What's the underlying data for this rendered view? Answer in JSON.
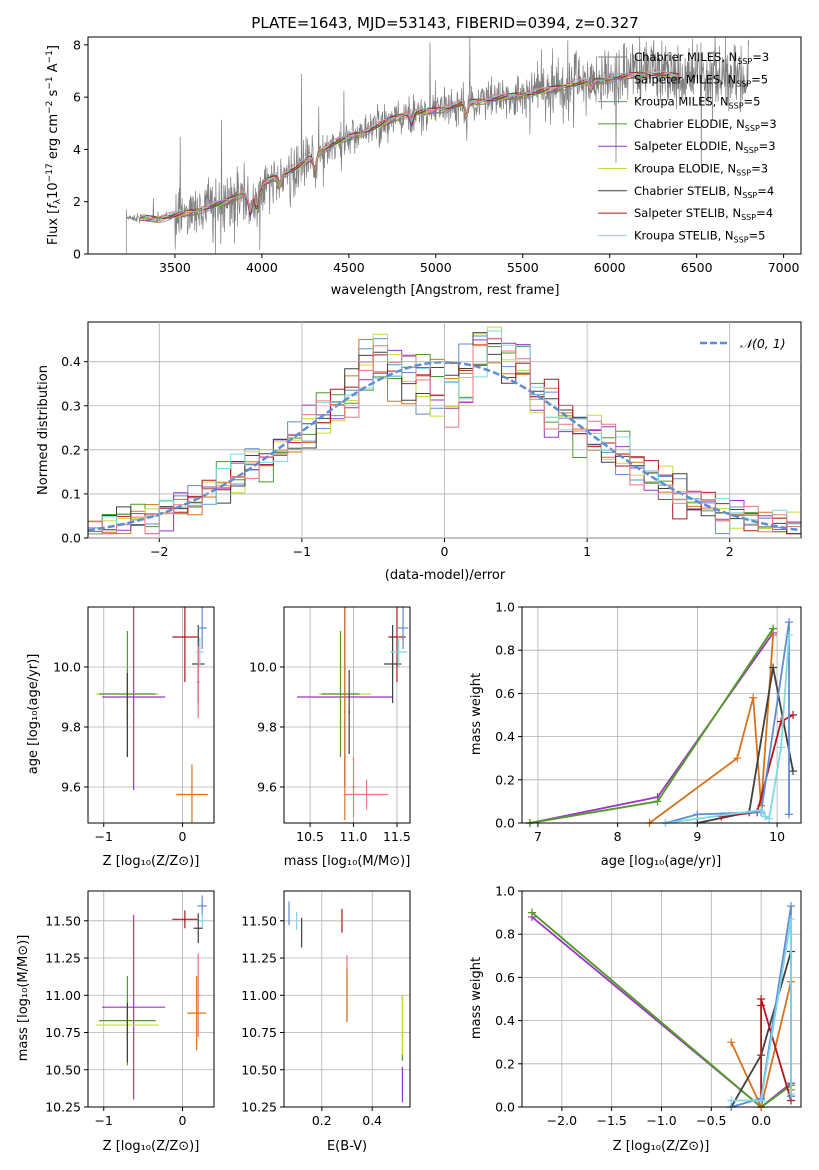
{
  "palette": [
    "#7f7f7f",
    "#5f8dd3",
    "#d8721e",
    "#4e9a2a",
    "#9a35c8",
    "#c8db3a",
    "#404040",
    "#b0171f",
    "#7fd8e6",
    "#e8787e",
    "#dba400"
  ],
  "panels": {
    "spectrum": {
      "title": "PLATE=1643, MJD=53143, FIBERID=0394, z=0.327",
      "xlabel": "wavelength [Angstrom, rest frame]",
      "ylabel_parts": [
        "Flux [",
        "f",
        "λ",
        "10",
        "−17",
        " erg cm",
        "−2",
        " s",
        "−1",
        " A",
        "−1",
        "]"
      ],
      "xticks": [
        "3500",
        "4000",
        "4500",
        "5000",
        "5500",
        "6000",
        "6500",
        "7000"
      ],
      "yticks": [
        "0",
        "2",
        "4",
        "6",
        "8"
      ],
      "legend": [
        {
          "base": "Chabrier MILES, N",
          "sub": "SSP",
          "tail": "=3",
          "color": "#7f7f7f"
        },
        {
          "base": "Salpeter MILES, N",
          "sub": "SSP",
          "tail": "=5",
          "color": "#5f8dd3"
        },
        {
          "base": "Kroupa MILES, N",
          "sub": "SSP",
          "tail": "=5",
          "color": "#d8721e"
        },
        {
          "base": "Chabrier ELODIE, N",
          "sub": "SSP",
          "tail": "=3",
          "color": "#4e9a2a"
        },
        {
          "base": "Salpeter ELODIE, N",
          "sub": "SSP",
          "tail": "=3",
          "color": "#9a35c8"
        },
        {
          "base": "Kroupa ELODIE, N",
          "sub": "SSP",
          "tail": "=3",
          "color": "#c8db3a"
        },
        {
          "base": "Chabrier STELIB, N",
          "sub": "SSP",
          "tail": "=4",
          "color": "#404040"
        },
        {
          "base": "Salpeter STELIB, N",
          "sub": "SSP",
          "tail": "=4",
          "color": "#b0171f"
        },
        {
          "base": "Kroupa STELIB, N",
          "sub": "SSP",
          "tail": "=5",
          "color": "#7fd8e6"
        }
      ]
    },
    "residuals": {
      "xlabel": "(data-model)/error",
      "ylabel": "Normed distribution",
      "legend": "𝒩(0, 1)",
      "xticks": [
        "−2",
        "−1",
        "0",
        "1",
        "2"
      ],
      "yticks": [
        "0.0",
        "0.1",
        "0.2",
        "0.3",
        "0.4"
      ]
    },
    "age_Z": {
      "xlabel": "Z [log₁₀(Z/Z⊙)]",
      "ylabel": "age  [log₁₀(age/yr)]",
      "xticks": [
        "−1",
        "0"
      ],
      "yticks": [
        "9.6",
        "9.8",
        "10.0"
      ]
    },
    "age_mass": {
      "xlabel": "mass [log₁₀(M/M⊙)]",
      "xticks": [
        "10.5",
        "11.0",
        "11.5"
      ],
      "yticks": [
        "9.6",
        "9.8",
        "10.0"
      ]
    },
    "weight_age": {
      "xlabel": "age  [log₁₀(age/yr)]",
      "ylabel": "mass weight",
      "xticks": [
        "7",
        "8",
        "9",
        "10"
      ],
      "yticks": [
        "0.0",
        "0.2",
        "0.4",
        "0.6",
        "0.8",
        "1.0"
      ]
    },
    "mass_Z": {
      "xlabel": "Z [log₁₀(Z/Z⊙)]",
      "ylabel": "mass [log₁₀(M/M⊙)]",
      "xticks": [
        "−1",
        "0"
      ],
      "yticks": [
        "10.25",
        "10.50",
        "10.75",
        "11.00",
        "11.25",
        "11.50"
      ]
    },
    "mass_ebv": {
      "xlabel": "E(B-V)",
      "xticks": [
        "0.2",
        "0.4"
      ],
      "yticks": [
        "10.25",
        "10.50",
        "10.75",
        "11.00",
        "11.25",
        "11.50"
      ]
    },
    "weight_Z": {
      "xlabel": "Z [log₁₀(Z/Z⊙)]",
      "ylabel": "mass weight",
      "xticks": [
        "−2.0",
        "−1.5",
        "−1.0",
        "−0.5",
        "0.0"
      ],
      "yticks": [
        "0.0",
        "0.2",
        "0.4",
        "0.6",
        "0.8",
        "1.0"
      ]
    }
  },
  "chart_data": [
    {
      "type": "line",
      "title": "PLATE=1643, MJD=53143, FIBERID=0394, z=0.327",
      "xlabel": "wavelength [Angstrom, rest frame]",
      "ylabel": "Flux [fλ 10−17 erg cm−2 s−1 A−1]",
      "xlim": [
        3000,
        7100
      ],
      "ylim": [
        0,
        8.3
      ],
      "data_trend": {
        "x": [
          3220,
          3400,
          3600,
          3800,
          4000,
          4200,
          4400,
          4600,
          4800,
          5000,
          5200,
          5400,
          5600,
          5800,
          6000,
          6200,
          6400,
          6600,
          6800
        ],
        "y": [
          1.4,
          1.35,
          1.6,
          2.0,
          2.7,
          3.3,
          4.2,
          4.7,
          5.3,
          5.5,
          5.8,
          6.0,
          6.2,
          6.5,
          6.7,
          6.9,
          6.8,
          6.9,
          6.8
        ]
      },
      "series": [
        {
          "name": "Chabrier MILES, NSSP=3"
        },
        {
          "name": "Salpeter MILES, NSSP=5"
        },
        {
          "name": "Kroupa MILES, NSSP=5"
        },
        {
          "name": "Chabrier ELODIE, NSSP=3"
        },
        {
          "name": "Salpeter ELODIE, NSSP=3"
        },
        {
          "name": "Kroupa ELODIE, NSSP=3"
        },
        {
          "name": "Chabrier STELIB, NSSP=4"
        },
        {
          "name": "Salpeter STELIB, NSSP=4"
        },
        {
          "name": "Kroupa STELIB, NSSP=5"
        }
      ]
    },
    {
      "type": "histogram",
      "xlabel": "(data-model)/error",
      "ylabel": "Normed distribution",
      "xlim": [
        -2.5,
        2.5
      ],
      "ylim": [
        0,
        0.49
      ],
      "bin_width": 0.1,
      "reference": {
        "name": "𝒩(0, 1)",
        "mean": 0,
        "sigma": 1
      }
    },
    {
      "type": "scatter",
      "xlabel": "Z [log10(Z/Z⊙)]",
      "ylabel": "age [log10(age/yr)]",
      "xlim": [
        -1.2,
        0.4
      ],
      "ylim": [
        9.48,
        10.2
      ],
      "points": [
        {
          "x": -0.62,
          "y": 9.9,
          "xerr": 0.4,
          "yerr": 0.31,
          "color": "#9a35c8"
        },
        {
          "x": -0.7,
          "y": 9.91,
          "xerr": 0.4,
          "yerr": 0.08,
          "color": "#c8db3a"
        },
        {
          "x": -0.7,
          "y": 9.91,
          "xerr": 0.36,
          "yerr": 0.21,
          "color": "#4e9a2a"
        },
        {
          "x": -0.7,
          "y": 9.84,
          "xerr": 0.01,
          "yerr": 0.14,
          "color": "#404040"
        },
        {
          "x": 0.03,
          "y": 10.1,
          "xerr": 0.16,
          "yerr": 0.15,
          "color": "#b0171f"
        },
        {
          "x": 0.2,
          "y": 10.01,
          "xerr": 0.08,
          "yerr": 0.13,
          "color": "#404040"
        },
        {
          "x": 0.25,
          "y": 10.13,
          "xerr": 0.06,
          "yerr": 0.07,
          "color": "#5f8dd3"
        },
        {
          "x": 0.22,
          "y": 10.05,
          "xerr": 0.05,
          "yerr": 0.05,
          "color": "#7fd8e6"
        },
        {
          "x": 0.2,
          "y": 9.95,
          "xerr": 0.02,
          "yerr": 0.12,
          "color": "#e8787e"
        },
        {
          "x": 0.12,
          "y": 9.575,
          "xerr": 0.2,
          "yerr": 0.1,
          "color": "#d8721e"
        }
      ]
    },
    {
      "type": "scatter",
      "xlabel": "mass [log10(M/M⊙)]",
      "ylabel": "",
      "xlim": [
        10.2,
        11.65
      ],
      "ylim": [
        9.48,
        10.2
      ],
      "points": [
        {
          "x": 10.9,
          "y": 9.9,
          "xerr": 0.55,
          "yerr": 0.3,
          "color": "#9a35c8"
        },
        {
          "x": 10.9,
          "y": 9.91,
          "xerr": 0.3,
          "yerr": 0.08,
          "color": "#c8db3a"
        },
        {
          "x": 10.85,
          "y": 9.91,
          "xerr": 0.22,
          "yerr": 0.21,
          "color": "#4e9a2a"
        },
        {
          "x": 10.95,
          "y": 9.85,
          "xerr": 0.01,
          "yerr": 0.14,
          "color": "#404040"
        },
        {
          "x": 11.5,
          "y": 10.1,
          "xerr": 0.1,
          "yerr": 0.15,
          "color": "#b0171f"
        },
        {
          "x": 11.45,
          "y": 10.01,
          "xerr": 0.1,
          "yerr": 0.13,
          "color": "#404040"
        },
        {
          "x": 11.57,
          "y": 10.13,
          "xerr": 0.06,
          "yerr": 0.07,
          "color": "#5f8dd3"
        },
        {
          "x": 11.52,
          "y": 10.05,
          "xerr": 0.1,
          "yerr": 0.05,
          "color": "#7fd8e6"
        },
        {
          "x": 11.0,
          "y": 9.6,
          "xerr": 0.02,
          "yerr": 0.1,
          "color": "#e8787e"
        },
        {
          "x": 11.15,
          "y": 9.575,
          "xerr": 0.25,
          "yerr": 0.05,
          "color": "#e8787e"
        },
        {
          "x": 10.9,
          "y": 9.85,
          "xerr": 0.01,
          "yerr": 0.36,
          "color": "#d8721e"
        }
      ]
    },
    {
      "type": "line",
      "xlabel": "age [log10(age/yr)]",
      "ylabel": "mass weight",
      "xlim": [
        6.8,
        10.3
      ],
      "ylim": [
        0,
        1.0
      ],
      "series": [
        {
          "color": "#9a35c8",
          "x": [
            6.9,
            8.5,
            9.95
          ],
          "y": [
            0.0,
            0.12,
            0.88
          ]
        },
        {
          "color": "#c8db3a",
          "x": [
            6.9,
            8.5,
            9.95
          ],
          "y": [
            0.0,
            0.1,
            0.9
          ]
        },
        {
          "color": "#4e9a2a",
          "x": [
            6.9,
            8.5,
            9.95
          ],
          "y": [
            0.0,
            0.1,
            0.9
          ]
        },
        {
          "color": "#d8721e",
          "x": [
            8.4,
            9.5,
            9.7,
            9.8,
            9.95
          ],
          "y": [
            0.0,
            0.3,
            0.58,
            0.08,
            0.87
          ]
        },
        {
          "color": "#404040",
          "x": [
            9.0,
            9.65,
            9.95,
            10.2
          ],
          "y": [
            0.0,
            0.05,
            0.72,
            0.24
          ]
        },
        {
          "color": "#b0171f",
          "x": [
            9.3,
            9.75,
            10.05,
            10.2
          ],
          "y": [
            0.03,
            0.05,
            0.47,
            0.5
          ]
        },
        {
          "color": "#5f8dd3",
          "x": [
            8.6,
            9.0,
            9.8,
            10.15,
            10.15
          ],
          "y": [
            0.0,
            0.04,
            0.05,
            0.93,
            0.04
          ]
        },
        {
          "color": "#7fd8e6",
          "x": [
            8.6,
            9.8,
            9.85,
            9.9,
            10.05,
            10.15
          ],
          "y": [
            0.0,
            0.06,
            0.03,
            0.02,
            0.35,
            0.87
          ]
        }
      ]
    },
    {
      "type": "scatter",
      "xlabel": "Z [log10(Z/Z⊙)]",
      "ylabel": "mass [log10(M/M⊙)]",
      "xlim": [
        -1.2,
        0.4
      ],
      "ylim": [
        10.25,
        11.7
      ],
      "points": [
        {
          "x": -0.62,
          "y": 10.92,
          "xerr": 0.4,
          "yerr": 0.62,
          "color": "#9a35c8"
        },
        {
          "x": -0.7,
          "y": 10.8,
          "xerr": 0.4,
          "yerr": 0.1,
          "color": "#c8db3a"
        },
        {
          "x": -0.7,
          "y": 10.83,
          "xerr": 0.36,
          "yerr": 0.3,
          "color": "#4e9a2a"
        },
        {
          "x": -0.7,
          "y": 10.75,
          "xerr": 0.01,
          "yerr": 0.2,
          "color": "#404040"
        },
        {
          "x": 0.03,
          "y": 11.51,
          "xerr": 0.16,
          "yerr": 0.06,
          "color": "#b0171f"
        },
        {
          "x": 0.2,
          "y": 11.45,
          "xerr": 0.06,
          "yerr": 0.1,
          "color": "#404040"
        },
        {
          "x": 0.25,
          "y": 11.6,
          "xerr": 0.06,
          "yerr": 0.07,
          "color": "#5f8dd3"
        },
        {
          "x": 0.25,
          "y": 11.5,
          "xerr": 0.03,
          "yerr": 0.05,
          "color": "#7fd8e6"
        },
        {
          "x": 0.2,
          "y": 11.0,
          "xerr": 0.03,
          "yerr": 0.28,
          "color": "#e8787e"
        },
        {
          "x": 0.18,
          "y": 10.88,
          "xerr": 0.12,
          "yerr": 0.25,
          "color": "#d8721e"
        }
      ]
    },
    {
      "type": "scatter",
      "xlabel": "E(B-V)",
      "ylabel": "",
      "xlim": [
        0.05,
        0.55
      ],
      "ylim": [
        10.25,
        11.7
      ],
      "points": [
        {
          "x": 0.07,
          "y": 11.55,
          "xerr": 0.0,
          "yerr": 0.08,
          "color": "#5f8dd3"
        },
        {
          "x": 0.1,
          "y": 11.5,
          "xerr": 0.0,
          "yerr": 0.06,
          "color": "#7fd8e6"
        },
        {
          "x": 0.12,
          "y": 11.42,
          "xerr": 0.0,
          "yerr": 0.1,
          "color": "#404040"
        },
        {
          "x": 0.28,
          "y": 11.5,
          "xerr": 0.0,
          "yerr": 0.08,
          "color": "#b0171f"
        },
        {
          "x": 0.3,
          "y": 11.05,
          "xerr": 0.0,
          "yerr": 0.22,
          "color": "#e8787e"
        },
        {
          "x": 0.3,
          "y": 11.0,
          "xerr": 0.0,
          "yerr": 0.18,
          "color": "#d8721e"
        },
        {
          "x": 0.52,
          "y": 10.78,
          "xerr": 0.0,
          "yerr": 0.22,
          "color": "#4e9a2a"
        },
        {
          "x": 0.52,
          "y": 10.8,
          "xerr": 0.0,
          "yerr": 0.2,
          "color": "#c8db3a"
        },
        {
          "x": 0.52,
          "y": 10.4,
          "xerr": 0.0,
          "yerr": 0.12,
          "color": "#9a35c8"
        }
      ]
    },
    {
      "type": "line",
      "xlabel": "Z [log10(Z/Z⊙)]",
      "ylabel": "mass weight",
      "xlim": [
        -2.4,
        0.4
      ],
      "ylim": [
        0,
        1.0
      ],
      "series": [
        {
          "color": "#9a35c8",
          "x": [
            -2.3,
            0.0,
            0.3
          ],
          "y": [
            0.88,
            0.0,
            0.11
          ]
        },
        {
          "color": "#c8db3a",
          "x": [
            -2.3,
            0.0,
            0.3
          ],
          "y": [
            0.9,
            0.0,
            0.1
          ]
        },
        {
          "color": "#4e9a2a",
          "x": [
            -2.3,
            0.0,
            0.3
          ],
          "y": [
            0.9,
            0.0,
            0.1
          ]
        },
        {
          "color": "#d8721e",
          "x": [
            -0.3,
            0.0,
            0.3,
            0.3
          ],
          "y": [
            0.3,
            0.0,
            0.58,
            0.08
          ]
        },
        {
          "color": "#404040",
          "x": [
            -0.3,
            0.0,
            0.3,
            0.3
          ],
          "y": [
            0.0,
            0.24,
            0.72,
            0.05
          ]
        },
        {
          "color": "#b0171f",
          "x": [
            0.0,
            0.0,
            0.0,
            0.3
          ],
          "y": [
            0.03,
            0.47,
            0.5,
            0.03
          ]
        },
        {
          "color": "#5f8dd3",
          "x": [
            -0.3,
            0.0,
            0.3,
            0.3
          ],
          "y": [
            0.0,
            0.04,
            0.93,
            0.05
          ]
        },
        {
          "color": "#7fd8e6",
          "x": [
            -0.3,
            0.0,
            0.3,
            0.3
          ],
          "y": [
            0.03,
            0.03,
            0.87,
            0.06
          ]
        }
      ]
    }
  ]
}
